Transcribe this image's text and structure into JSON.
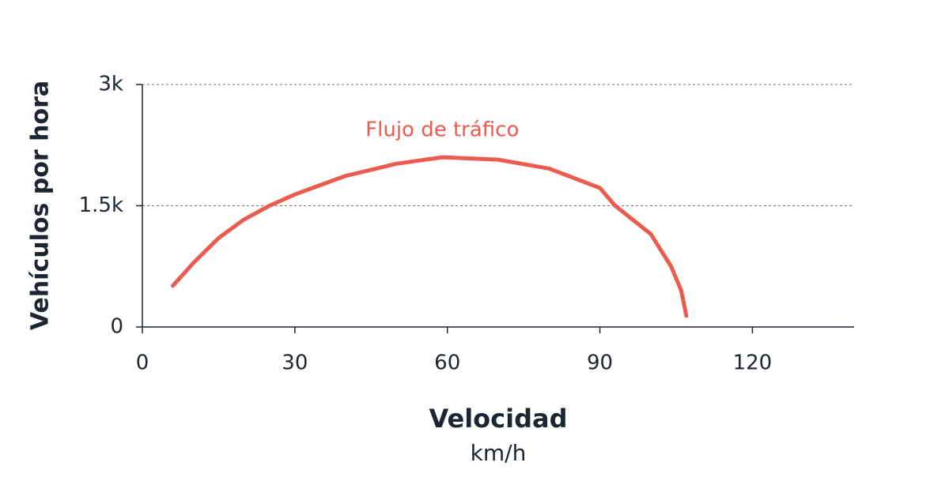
{
  "chart_data": {
    "type": "line",
    "x_label": "Velocidad",
    "x_unit": "km/h",
    "y_label": "Vehículos por hora",
    "x": [
      6,
      10,
      15,
      20,
      25,
      30,
      40,
      50,
      59,
      70,
      80,
      90,
      93,
      100,
      104,
      106,
      107
    ],
    "series": [
      {
        "name": "Flujo de tráfico",
        "color": "#eb5b4f",
        "values": [
          510,
          790,
          1100,
          1330,
          1500,
          1640,
          1870,
          2020,
          2100,
          2070,
          1960,
          1720,
          1500,
          1150,
          750,
          450,
          137
        ]
      }
    ],
    "xlim": [
      0,
      140
    ],
    "xticks": [
      0,
      30,
      60,
      90,
      120
    ],
    "ylim": [
      0,
      3000
    ],
    "yticks": [
      0,
      {
        "value": 1500,
        "label": "1.5k"
      },
      {
        "value": 3000,
        "label": "3k"
      }
    ],
    "grid": true
  }
}
